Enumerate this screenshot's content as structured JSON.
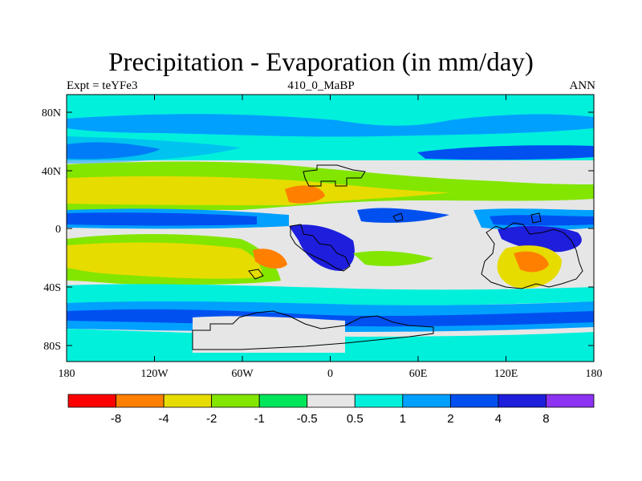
{
  "title": "Precipitation - Evaporation (in mm/day)",
  "subtitle_left": "Expt = teYFe3",
  "subtitle_center": "410_0_MaBP",
  "subtitle_right": "ANN",
  "axes": {
    "x_ticks": [
      "180",
      "120W",
      "60W",
      "0",
      "60E",
      "120E",
      "180"
    ],
    "y_ticks": [
      "80N",
      "40N",
      "0",
      "40S",
      "80S"
    ]
  },
  "colorbar": {
    "colors": [
      "#ff0000",
      "#ff8000",
      "#e6dc00",
      "#82e600",
      "#00e65a",
      "#e6e6e6",
      "#00f0dc",
      "#00a0ff",
      "#0050f0",
      "#1e1edc",
      "#8c32f0"
    ],
    "labels": [
      "-8",
      "-4",
      "-2",
      "-1",
      "-0.5",
      "0.5",
      "1",
      "2",
      "4",
      "8"
    ]
  }
}
